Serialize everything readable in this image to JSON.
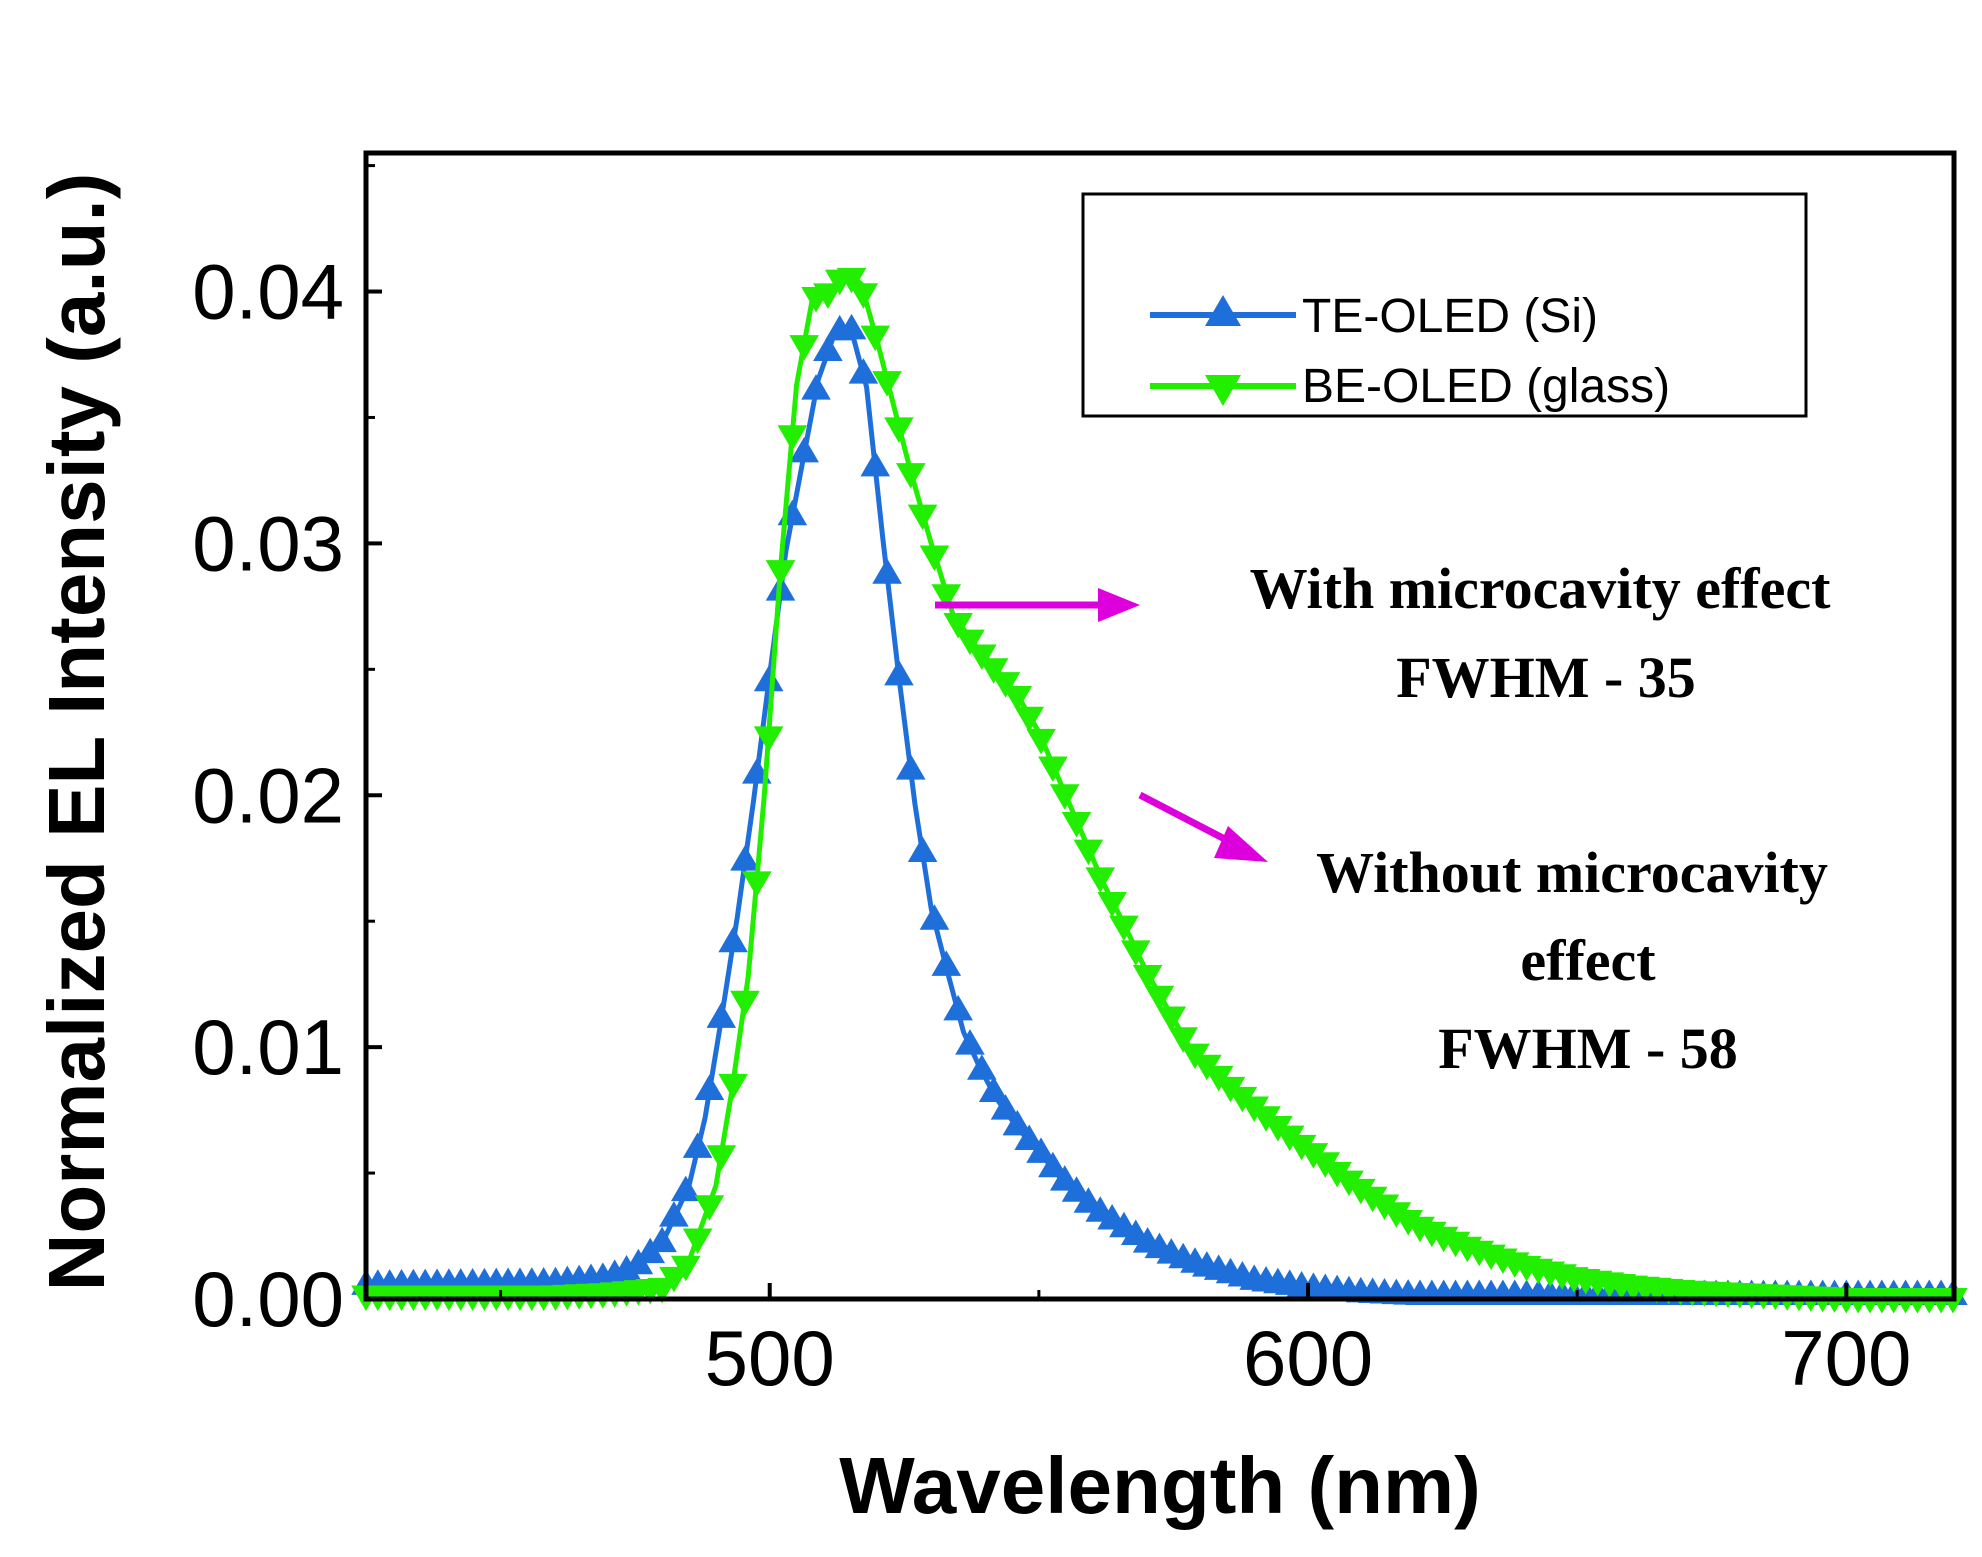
{
  "chart_data": {
    "type": "line",
    "title": "",
    "xlabel": "Wavelength (nm)",
    "ylabel": "Normalized EL Intensity (a.u.)",
    "xlim": [
      425,
      720
    ],
    "ylim": [
      0,
      0.0455
    ],
    "x_ticks": [
      500,
      600,
      700
    ],
    "x_tick_labels": [
      "500",
      "600",
      "700"
    ],
    "y_ticks": [
      0,
      0.01,
      0.02,
      0.03,
      0.04
    ],
    "y_tick_labels": [
      "0.00",
      "0.01",
      "0.02",
      "0.03",
      "0.04"
    ],
    "legend_position": "top-right",
    "series": [
      {
        "name": "TE-OLED (Si)",
        "color": "#1f6fdb",
        "marker": "triangle-up",
        "x": [
          425,
          460,
          470,
          475,
          480,
          485,
          488,
          491,
          494,
          497,
          500,
          503,
          506,
          509,
          512,
          515,
          518,
          521,
          524,
          527,
          530,
          533,
          536,
          539,
          542,
          545,
          548,
          551,
          554,
          557,
          560,
          565,
          570,
          575,
          580,
          585,
          590,
          600,
          610,
          620,
          640,
          660,
          680,
          700,
          720
        ],
        "values": [
          0.0005,
          0.0006,
          0.0008,
          0.0012,
          0.0022,
          0.0045,
          0.0072,
          0.0111,
          0.0152,
          0.0198,
          0.0248,
          0.0297,
          0.0331,
          0.0365,
          0.0383,
          0.0386,
          0.0362,
          0.0302,
          0.0247,
          0.0196,
          0.0155,
          0.013,
          0.0106,
          0.0092,
          0.008,
          0.0071,
          0.0063,
          0.0056,
          0.0048,
          0.0042,
          0.0036,
          0.0029,
          0.0022,
          0.0017,
          0.0013,
          0.001,
          0.0007,
          0.0004,
          0.0002,
          0.0001,
          0.0001,
          0.0001,
          0.0001,
          0.0001,
          0.0001
        ]
      },
      {
        "name": "BE-OLED  (glass)",
        "color": "#22ee00",
        "marker": "triangle-down",
        "x": [
          425,
          460,
          470,
          480,
          485,
          490,
          493,
          496,
          499,
          502,
          505,
          508,
          511,
          514,
          517,
          520,
          523,
          526,
          530,
          534,
          538,
          542,
          546,
          550,
          554,
          558,
          562,
          566,
          570,
          574,
          578,
          582,
          586,
          590,
          594,
          598,
          602,
          606,
          610,
          615,
          620,
          630,
          640,
          650,
          660,
          670,
          680,
          700,
          720
        ],
        "values": [
          0.0002,
          0.0002,
          0.0003,
          0.0005,
          0.0015,
          0.0045,
          0.0083,
          0.0128,
          0.02,
          0.029,
          0.0363,
          0.0398,
          0.04,
          0.0408,
          0.0403,
          0.038,
          0.0355,
          0.033,
          0.03,
          0.0272,
          0.026,
          0.025,
          0.024,
          0.0225,
          0.0205,
          0.0185,
          0.0165,
          0.0148,
          0.013,
          0.0115,
          0.01,
          0.0092,
          0.0084,
          0.0077,
          0.007,
          0.0063,
          0.0057,
          0.005,
          0.0044,
          0.0037,
          0.003,
          0.0021,
          0.0014,
          0.0009,
          0.0006,
          0.0004,
          0.0003,
          0.0001,
          0.0001
        ]
      }
    ],
    "annotations": [
      {
        "lines": [
          "With microcavity effect",
          "FWHM - 35"
        ],
        "arrow_color": "#dd00dd"
      },
      {
        "lines": [
          "Without microcavity",
          "effect",
          "FWHM - 58"
        ],
        "arrow_color": "#dd00dd"
      }
    ]
  }
}
